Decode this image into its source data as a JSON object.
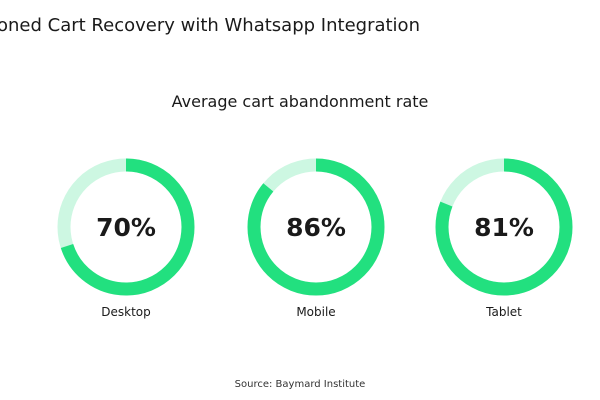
{
  "header": {
    "title": "oned Cart Recovery with Whatsapp Integration"
  },
  "colors": {
    "arc": "#22e07f",
    "track": "#cdf7e2",
    "text": "#1a1a1a"
  },
  "chart_data": {
    "type": "pie",
    "variant": "donut",
    "title": "Average cart abandonment rate",
    "source": "Source: Baymard Institute",
    "items": [
      {
        "label": "Desktop",
        "value": 70,
        "display": "70%"
      },
      {
        "label": "Mobile",
        "value": 86,
        "display": "86%"
      },
      {
        "label": "Tablet",
        "value": 81,
        "display": "81%"
      }
    ]
  }
}
